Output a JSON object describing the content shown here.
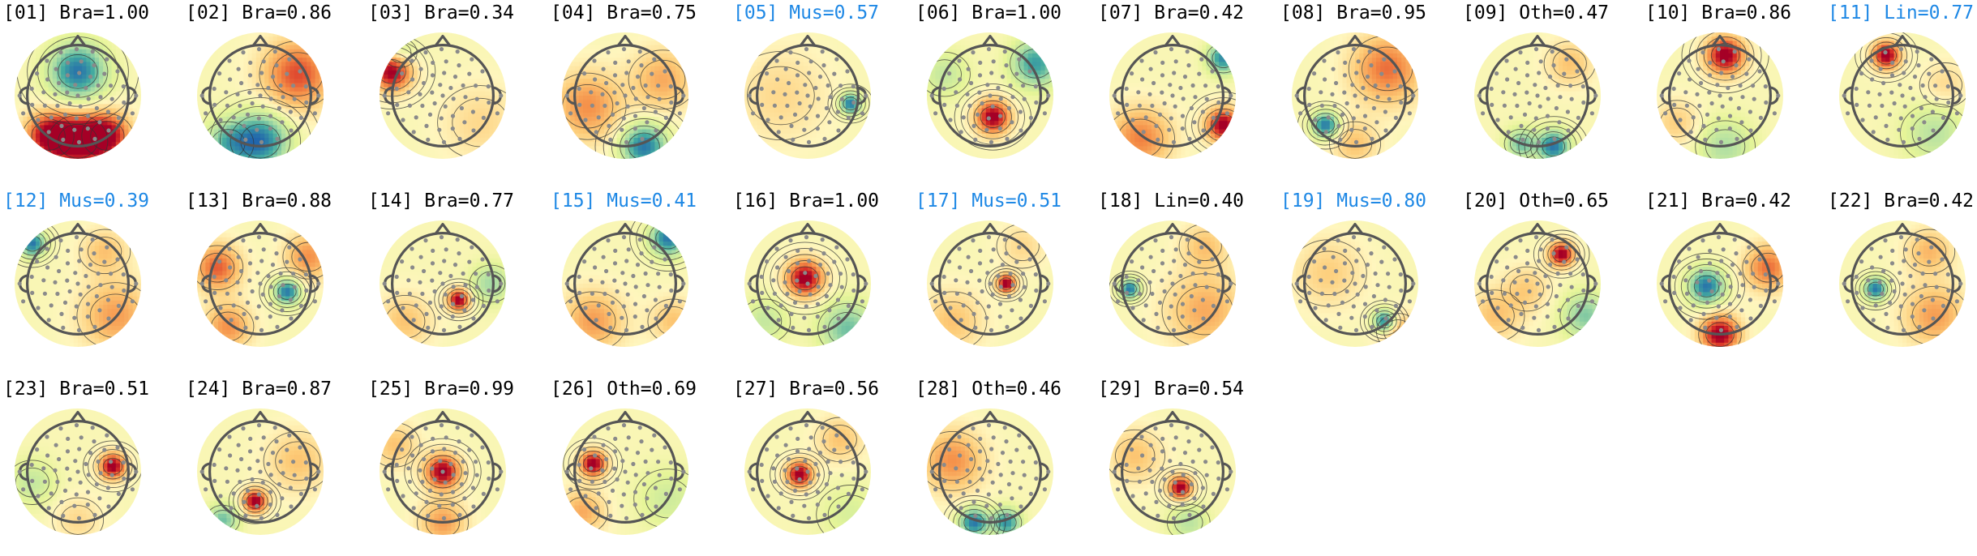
{
  "figure": {
    "components": [
      {
        "index": "01",
        "label": "Bra",
        "score": "1.00",
        "flagged": false,
        "pattern": [
          [
            0,
            -0.45,
            -1.0,
            0.35
          ],
          [
            0,
            0.85,
            1.0,
            0.35
          ],
          [
            0.55,
            0.75,
            0.9,
            0.3
          ],
          [
            -0.55,
            0.75,
            0.9,
            0.3
          ]
        ]
      },
      {
        "index": "02",
        "label": "Bra",
        "score": "0.86",
        "flagged": false,
        "pattern": [
          [
            0,
            0.85,
            -1.0,
            0.35
          ],
          [
            0.7,
            -0.4,
            0.7,
            0.45
          ],
          [
            -0.6,
            0.9,
            -0.6,
            0.3
          ]
        ]
      },
      {
        "index": "03",
        "label": "Bra",
        "score": "0.34",
        "flagged": false,
        "pattern": [
          [
            -0.95,
            -0.45,
            1.0,
            0.25
          ],
          [
            -0.8,
            -0.8,
            -0.3,
            0.2
          ],
          [
            0.7,
            0.5,
            0.2,
            0.5
          ]
        ]
      },
      {
        "index": "04",
        "label": "Bra",
        "score": "0.75",
        "flagged": false,
        "pattern": [
          [
            0.35,
            0.95,
            -1.0,
            0.28
          ],
          [
            -0.7,
            0.2,
            0.5,
            0.45
          ],
          [
            0.7,
            -0.3,
            0.4,
            0.4
          ]
        ]
      },
      {
        "index": "05",
        "label": "Mus",
        "score": "0.57",
        "flagged": true,
        "pattern": [
          [
            0.8,
            0.15,
            -1.0,
            0.13
          ],
          [
            -0.5,
            0.0,
            0.2,
            0.6
          ]
        ]
      },
      {
        "index": "06",
        "label": "Bra",
        "score": "1.00",
        "flagged": false,
        "pattern": [
          [
            0.05,
            0.4,
            1.0,
            0.22
          ],
          [
            0.85,
            -0.6,
            -0.8,
            0.3
          ],
          [
            -0.85,
            -0.4,
            -0.3,
            0.3
          ]
        ]
      },
      {
        "index": "07",
        "label": "Bra",
        "score": "0.42",
        "flagged": false,
        "pattern": [
          [
            0.95,
            0.55,
            1.0,
            0.22
          ],
          [
            0.95,
            -0.7,
            -0.9,
            0.2
          ],
          [
            -0.6,
            0.8,
            0.55,
            0.4
          ]
        ]
      },
      {
        "index": "08",
        "label": "Bra",
        "score": "0.95",
        "flagged": false,
        "pattern": [
          [
            -0.55,
            0.55,
            -1.0,
            0.16
          ],
          [
            0.6,
            -0.5,
            0.6,
            0.45
          ],
          [
            0.0,
            0.9,
            0.3,
            0.3
          ]
        ]
      },
      {
        "index": "09",
        "label": "Oth",
        "score": "0.47",
        "flagged": false,
        "pattern": [
          [
            0.3,
            0.95,
            -1.0,
            0.2
          ],
          [
            -0.3,
            0.9,
            -0.6,
            0.2
          ],
          [
            0.6,
            -0.6,
            0.3,
            0.3
          ]
        ]
      },
      {
        "index": "10",
        "label": "Bra",
        "score": "0.86",
        "flagged": false,
        "pattern": [
          [
            0.1,
            -0.75,
            1.0,
            0.25
          ],
          [
            0.1,
            0.95,
            -0.4,
            0.35
          ],
          [
            -0.8,
            0.5,
            0.25,
            0.3
          ]
        ]
      },
      {
        "index": "11",
        "label": "Lin",
        "score": "0.77",
        "flagged": true,
        "pattern": [
          [
            -0.3,
            -0.75,
            1.0,
            0.18
          ],
          [
            0.6,
            0.7,
            -0.35,
            0.4
          ],
          [
            0.8,
            -0.2,
            0.2,
            0.3
          ]
        ]
      },
      {
        "index": "12",
        "label": "Mus",
        "score": "0.39",
        "flagged": true,
        "pattern": [
          [
            -0.85,
            -0.75,
            -1.0,
            0.16
          ],
          [
            0.7,
            0.6,
            0.45,
            0.45
          ],
          [
            0.5,
            -0.6,
            0.3,
            0.3
          ]
        ]
      },
      {
        "index": "13",
        "label": "Bra",
        "score": "0.88",
        "flagged": false,
        "pattern": [
          [
            0.5,
            0.15,
            -1.0,
            0.16
          ],
          [
            -0.8,
            -0.3,
            0.65,
            0.3
          ],
          [
            0.9,
            -0.5,
            0.5,
            0.3
          ],
          [
            -0.6,
            0.8,
            0.5,
            0.3
          ]
        ]
      },
      {
        "index": "14",
        "label": "Bra",
        "score": "0.77",
        "flagged": false,
        "pattern": [
          [
            0.3,
            0.3,
            1.0,
            0.14
          ],
          [
            0.9,
            0.0,
            -0.45,
            0.25
          ],
          [
            -0.7,
            0.7,
            0.3,
            0.35
          ]
        ]
      },
      {
        "index": "15",
        "label": "Mus",
        "score": "0.41",
        "flagged": true,
        "pattern": [
          [
            0.8,
            -0.85,
            -1.0,
            0.22
          ],
          [
            -0.6,
            0.7,
            0.45,
            0.4
          ],
          [
            0.9,
            0.7,
            0.3,
            0.3
          ]
        ]
      },
      {
        "index": "16",
        "label": "Bra",
        "score": "1.00",
        "flagged": false,
        "pattern": [
          [
            -0.05,
            -0.1,
            1.0,
            0.24
          ],
          [
            0.75,
            0.85,
            -0.6,
            0.35
          ],
          [
            -0.8,
            0.7,
            -0.3,
            0.3
          ]
        ]
      },
      {
        "index": "17",
        "label": "Mus",
        "score": "0.51",
        "flagged": true,
        "pattern": [
          [
            0.3,
            0.0,
            1.0,
            0.12
          ],
          [
            -0.7,
            0.7,
            0.3,
            0.4
          ],
          [
            0.6,
            -0.7,
            0.2,
            0.3
          ]
        ]
      },
      {
        "index": "18",
        "label": "Lin",
        "score": "0.40",
        "flagged": false,
        "pattern": [
          [
            -0.8,
            0.1,
            -1.0,
            0.12
          ],
          [
            0.6,
            0.5,
            0.4,
            0.5
          ],
          [
            0.6,
            -0.7,
            0.3,
            0.3
          ]
        ]
      },
      {
        "index": "19",
        "label": "Mus",
        "score": "0.80",
        "flagged": true,
        "pattern": [
          [
            0.55,
            0.7,
            -1.0,
            0.14
          ],
          [
            -0.5,
            -0.2,
            0.25,
            0.45
          ],
          [
            0.8,
            0.9,
            0.4,
            0.25
          ]
        ]
      },
      {
        "index": "20",
        "label": "Oth",
        "score": "0.65",
        "flagged": false,
        "pattern": [
          [
            0.45,
            -0.55,
            1.0,
            0.16
          ],
          [
            -0.2,
            0.1,
            0.25,
            0.3
          ],
          [
            0.9,
            0.6,
            -0.55,
            0.3
          ],
          [
            -0.8,
            0.6,
            0.3,
            0.35
          ]
        ]
      },
      {
        "index": "21",
        "label": "Bra",
        "score": "0.42",
        "flagged": false,
        "pattern": [
          [
            -0.25,
            0.05,
            -1.0,
            0.22
          ],
          [
            0.0,
            0.95,
            1.0,
            0.25
          ],
          [
            0.9,
            -0.3,
            0.6,
            0.3
          ]
        ]
      },
      {
        "index": "22",
        "label": "Bra",
        "score": "0.42",
        "flagged": false,
        "pattern": [
          [
            -0.5,
            0.1,
            -1.0,
            0.14
          ],
          [
            0.6,
            0.6,
            0.45,
            0.4
          ],
          [
            0.5,
            -0.6,
            0.35,
            0.3
          ]
        ]
      },
      {
        "index": "23",
        "label": "Bra",
        "score": "0.51",
        "flagged": false,
        "pattern": [
          [
            0.65,
            -0.1,
            1.0,
            0.17
          ],
          [
            -0.85,
            0.2,
            -0.3,
            0.3
          ],
          [
            0.0,
            0.9,
            0.2,
            0.3
          ]
        ]
      },
      {
        "index": "24",
        "label": "Bra",
        "score": "0.87",
        "flagged": false,
        "pattern": [
          [
            -0.1,
            0.55,
            1.0,
            0.15
          ],
          [
            -0.7,
            0.9,
            -0.6,
            0.2
          ],
          [
            0.7,
            -0.2,
            0.3,
            0.4
          ]
        ]
      },
      {
        "index": "25",
        "label": "Bra",
        "score": "0.99",
        "flagged": false,
        "pattern": [
          [
            0.0,
            0.0,
            1.0,
            0.22
          ],
          [
            0.0,
            0.95,
            0.45,
            0.3
          ],
          [
            -0.9,
            -0.5,
            0.3,
            0.3
          ]
        ]
      },
      {
        "index": "26",
        "label": "Oth",
        "score": "0.69",
        "flagged": false,
        "pattern": [
          [
            -0.6,
            -0.15,
            1.0,
            0.17
          ],
          [
            0.8,
            0.5,
            -0.25,
            0.4
          ],
          [
            -0.8,
            0.75,
            0.4,
            0.3
          ]
        ]
      },
      {
        "index": "27",
        "label": "Bra",
        "score": "0.56",
        "flagged": false,
        "pattern": [
          [
            -0.15,
            0.05,
            1.0,
            0.17
          ],
          [
            0.8,
            0.8,
            -0.2,
            0.4
          ],
          [
            0.6,
            -0.6,
            0.3,
            0.3
          ]
        ]
      },
      {
        "index": "28",
        "label": "Oth",
        "score": "0.46",
        "flagged": false,
        "pattern": [
          [
            -0.3,
            0.95,
            -1.0,
            0.18
          ],
          [
            0.3,
            0.95,
            -0.85,
            0.18
          ],
          [
            -0.7,
            -0.2,
            0.5,
            0.4
          ]
        ]
      },
      {
        "index": "29",
        "label": "Bra",
        "score": "0.54",
        "flagged": false,
        "pattern": [
          [
            0.15,
            0.3,
            1.0,
            0.15
          ],
          [
            0.3,
            0.95,
            -0.35,
            0.25
          ],
          [
            -0.7,
            -0.3,
            0.3,
            0.35
          ]
        ]
      }
    ]
  },
  "colors": {
    "flagged_title": "#1e88e5",
    "normal_title": "#000000",
    "head_outline": "#555555",
    "sensor_dot": "#8a8a8a",
    "contour": "#333333"
  }
}
